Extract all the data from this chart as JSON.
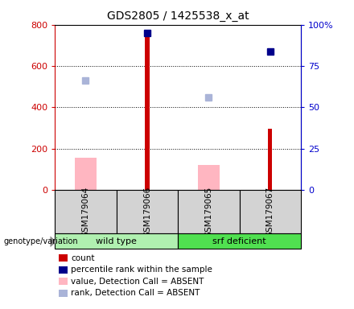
{
  "title": "GDS2805 / 1425538_x_at",
  "samples": [
    "GSM179064",
    "GSM179066",
    "GSM179065",
    "GSM179067"
  ],
  "left_ylim": [
    0,
    800
  ],
  "right_ylim": [
    0,
    100
  ],
  "left_yticks": [
    0,
    200,
    400,
    600,
    800
  ],
  "right_yticks": [
    0,
    25,
    50,
    75,
    100
  ],
  "right_yticklabels": [
    "0",
    "25",
    "50",
    "75",
    "100%"
  ],
  "count_values": [
    null,
    760,
    null,
    295
  ],
  "count_color": "#cc0000",
  "percentile_pct": [
    null,
    95,
    null,
    84
  ],
  "percentile_color": "#00008b",
  "value_absent": [
    155,
    null,
    120,
    null
  ],
  "value_absent_color": "#ffb6c1",
  "rank_absent_left": [
    530,
    null,
    450,
    null
  ],
  "rank_absent_color": "#aab4d8",
  "sample_box_color": "#d3d3d3",
  "left_ylabel_color": "#cc0000",
  "right_ylabel_color": "#0000cc",
  "wildtype_color": "#b0f0b0",
  "srf_color": "#50e050",
  "legend_items": [
    {
      "label": "count",
      "color": "#cc0000"
    },
    {
      "label": "percentile rank within the sample",
      "color": "#00008b"
    },
    {
      "label": "value, Detection Call = ABSENT",
      "color": "#ffb6c1"
    },
    {
      "label": "rank, Detection Call = ABSENT",
      "color": "#aab4d8"
    }
  ]
}
